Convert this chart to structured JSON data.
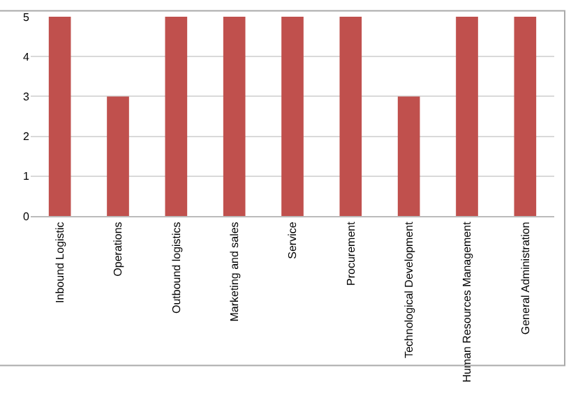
{
  "chart_data": {
    "type": "bar",
    "categories": [
      "Inbound Logistic",
      "Operations",
      "Outbound logistics",
      "Marketing and sales",
      "Service",
      "Procurement",
      "Technological Development",
      "Human Resources Management",
      "General Administration"
    ],
    "values": [
      5,
      3,
      5,
      5,
      5,
      5,
      3,
      5,
      5
    ],
    "color": "#c0504d",
    "ylim": [
      0,
      5
    ],
    "yticks": [
      0,
      1,
      2,
      3,
      4,
      5
    ],
    "grid": "y",
    "legend": false
  }
}
